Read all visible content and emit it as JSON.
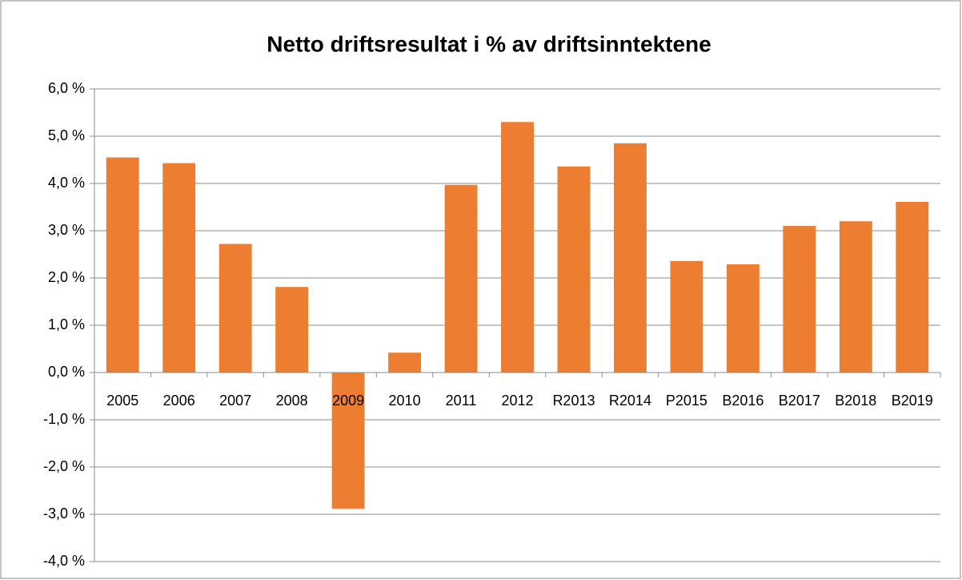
{
  "chart_data": {
    "type": "bar",
    "title": "Netto driftsresultat  i % av driftsinntektene",
    "categories": [
      "2005",
      "2006",
      "2007",
      "2008",
      "2009",
      "2010",
      "2011",
      "2012",
      "R2013",
      "R2014",
      "P2015",
      "B2016",
      "B2017",
      "B2018",
      "B2019"
    ],
    "values": [
      4.55,
      4.43,
      2.72,
      1.81,
      -2.88,
      0.42,
      3.97,
      5.3,
      4.36,
      4.85,
      2.36,
      2.29,
      3.1,
      3.2,
      3.61
    ],
    "color": "#ed7d31",
    "ylim": [
      -4,
      6
    ],
    "yticks": [
      {
        "value": -4,
        "label": "-4,0 %"
      },
      {
        "value": -3,
        "label": "-3,0 %"
      },
      {
        "value": -2,
        "label": "-2,0 %"
      },
      {
        "value": -1,
        "label": "-1,0 %"
      },
      {
        "value": 0,
        "label": "0,0 %"
      },
      {
        "value": 1,
        "label": "1,0 %"
      },
      {
        "value": 2,
        "label": "2,0 %"
      },
      {
        "value": 3,
        "label": "3,0 %"
      },
      {
        "value": 4,
        "label": "4,0 %"
      },
      {
        "value": 5,
        "label": "5,0 %"
      },
      {
        "value": 6,
        "label": "6,0 %"
      }
    ],
    "grid": true
  }
}
